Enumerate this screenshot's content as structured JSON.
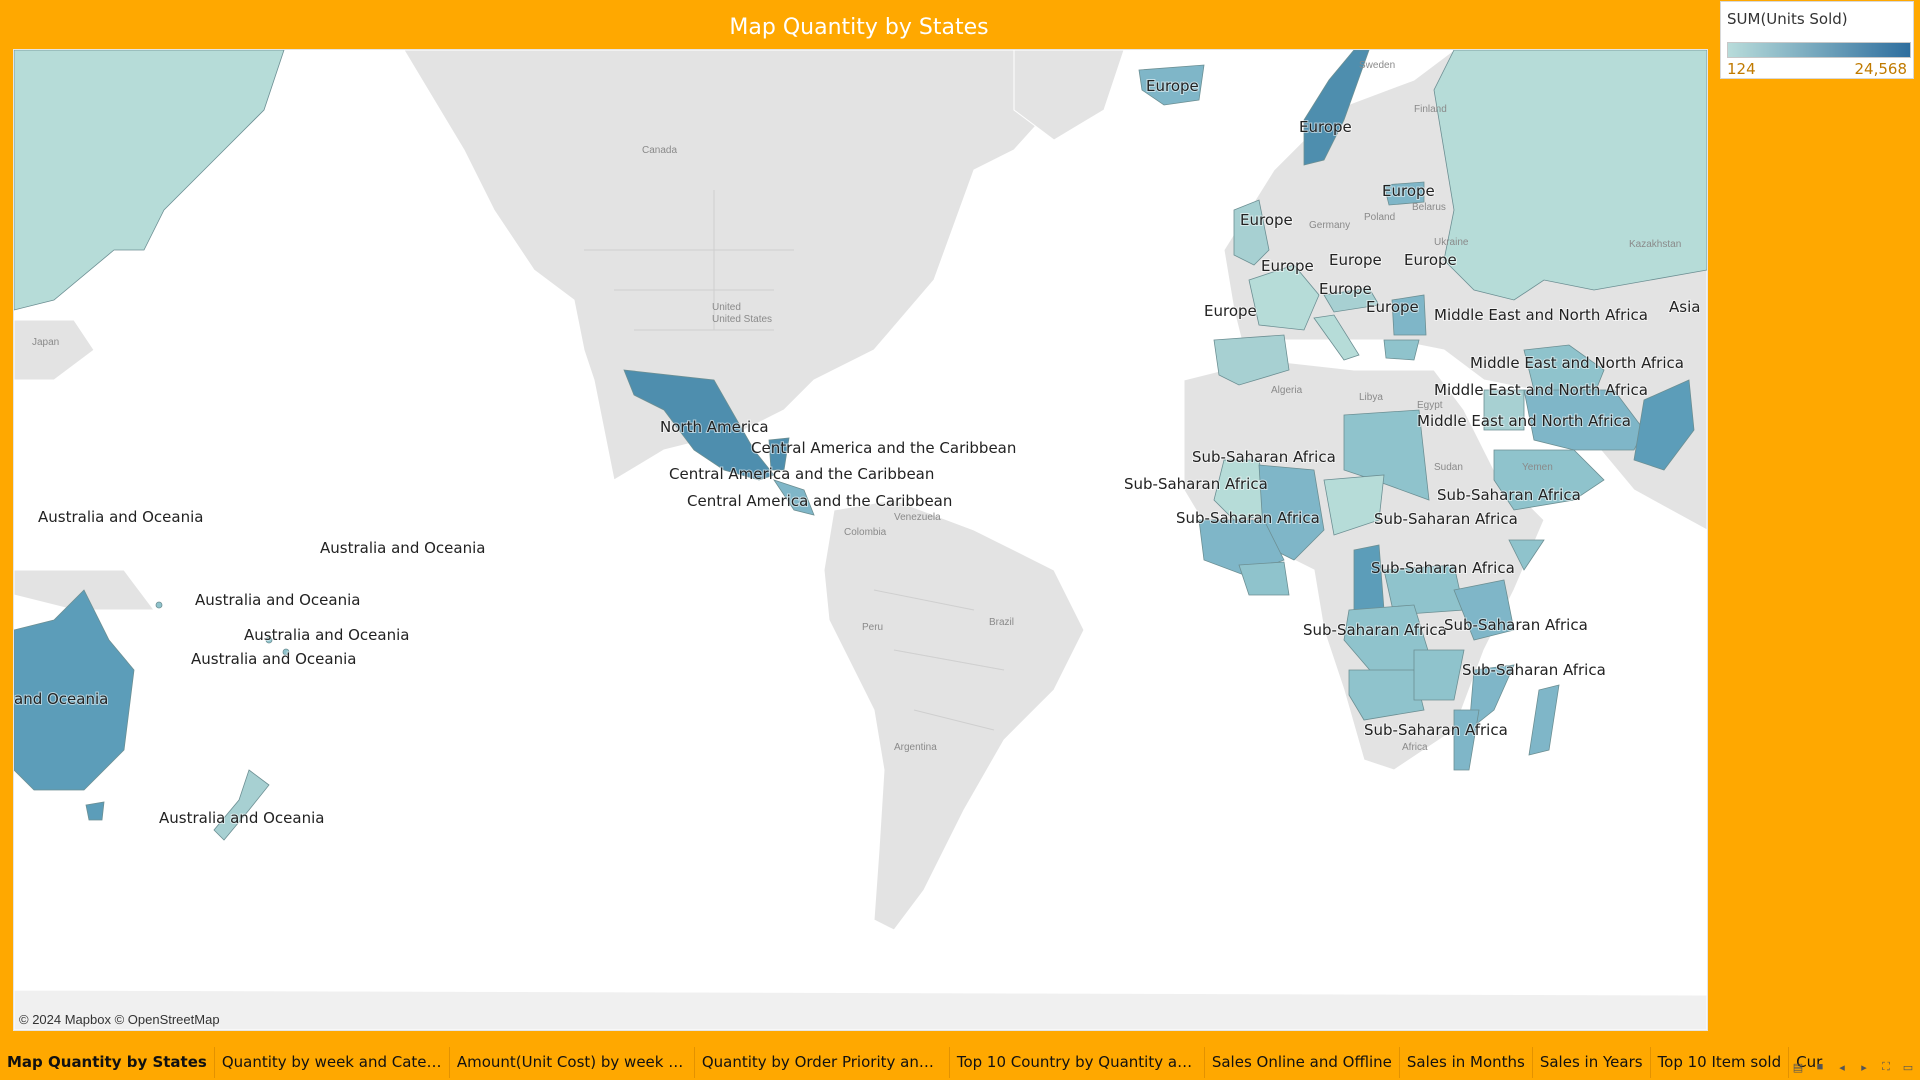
{
  "title": "Map Quantity by States",
  "legend": {
    "title": "SUM(Units Sold)",
    "min": "124",
    "max": "24,568",
    "color_low": "#B8DCDA",
    "color_high": "#2E6E9E"
  },
  "attribution": "© 2024 Mapbox © OpenStreetMap",
  "map": {
    "region_labels": [
      "Europe",
      "Europe",
      "Europe",
      "Europe",
      "Europe",
      "Europe",
      "Europe",
      "Europe",
      "Europe",
      "Europe",
      "Middle East and North Africa",
      "Middle East and North Africa",
      "Middle East and North Africa",
      "Middle East and North Africa",
      "Asia",
      "North America",
      "Central America and the Caribbean",
      "Central America and the Caribbean",
      "Central America and the Caribbean",
      "Sub-Saharan Africa",
      "Sub-Saharan Africa",
      "Sub-Saharan Africa",
      "Sub-Saharan Africa",
      "Sub-Saharan Africa",
      "Sub-Saharan Africa",
      "Sub-Saharan Africa",
      "Sub-Saharan Africa",
      "Sub-Saharan Africa",
      "Sub-Saharan Africa",
      "Australia and Oceania",
      "Australia and Oceania",
      "Australia and Oceania",
      "Australia and Oceania",
      "Australia and Oceania",
      "Australia and Oceania",
      "and Oceania"
    ],
    "basemap_labels": [
      "Canada",
      "United States",
      "Colombia",
      "Venezuela",
      "Peru",
      "Brazil",
      "Argentina",
      "Japan",
      "Sweden",
      "Finland",
      "Germany",
      "Poland",
      "Belarus",
      "Ukraine",
      "Kazakhstan",
      "Algeria",
      "Libya",
      "Egypt",
      "Sudan",
      "Yemen",
      "Africa"
    ]
  },
  "tabs": [
    "Map Quantity by States",
    "Quantity by week and Category",
    "Amount(Unit Cost) by week and ...",
    "Quantity by Order Priority and C...",
    "Top 10 Country by Quantity  an...",
    "Sales Online and Offline",
    "Sales in Months",
    "Sales in Years",
    "Top 10 Item sold",
    "Cur"
  ]
}
